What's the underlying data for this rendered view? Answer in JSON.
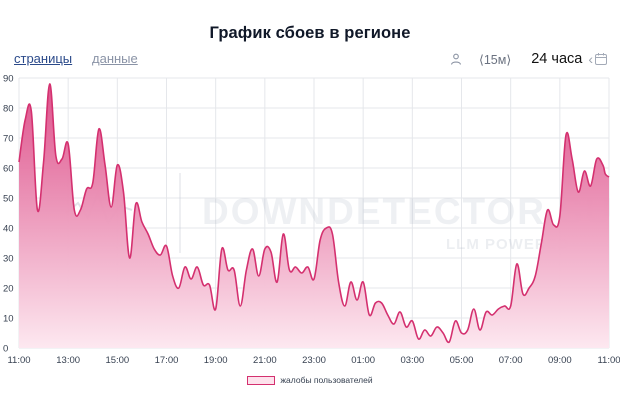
{
  "header": {
    "title": "График сбоев в регионе"
  },
  "nav": {
    "pages_label": "страницы",
    "data_label": "данные"
  },
  "controls": {
    "user_icon": "user-icon",
    "interval_label": "⟨15м⟩",
    "range_label": "24 часа",
    "prev_icon": "chevron-left-icon",
    "calendar_icon": "calendar-icon"
  },
  "watermark": {
    "main": "DOWNDETECTOR SU",
    "sub": "LLM POWERED"
  },
  "colors": {
    "line": "#d4306f",
    "fill_top": "#e05590",
    "fill_bottom": "#fce4ee",
    "grid": "#e5e7eb"
  },
  "chart_data": {
    "type": "area",
    "title": "График сбоев в регионе",
    "xlabel": "",
    "ylabel": "",
    "ylim": [
      0,
      90
    ],
    "yticks": [
      0,
      10,
      20,
      30,
      40,
      50,
      60,
      70,
      80,
      90
    ],
    "xlim": [
      0,
      24
    ],
    "xtick_labels": [
      "11:00",
      "13:00",
      "15:00",
      "17:00",
      "19:00",
      "21:00",
      "23:00",
      "01:00",
      "03:00",
      "05:00",
      "07:00",
      "09:00",
      "11:00"
    ],
    "grid": true,
    "legend_position": "bottom-center",
    "series": [
      {
        "name": "жалобы пользователей",
        "points": [
          [
            0.0,
            62
          ],
          [
            0.25,
            76
          ],
          [
            0.5,
            79
          ],
          [
            0.75,
            46
          ],
          [
            1.0,
            62
          ],
          [
            1.25,
            88
          ],
          [
            1.5,
            64
          ],
          [
            1.75,
            63
          ],
          [
            2.0,
            68
          ],
          [
            2.25,
            46
          ],
          [
            2.5,
            46
          ],
          [
            2.75,
            53
          ],
          [
            3.0,
            55
          ],
          [
            3.25,
            73
          ],
          [
            3.5,
            61
          ],
          [
            3.75,
            47
          ],
          [
            4.0,
            61
          ],
          [
            4.25,
            52
          ],
          [
            4.5,
            30
          ],
          [
            4.75,
            48
          ],
          [
            5.0,
            42
          ],
          [
            5.25,
            38
          ],
          [
            5.5,
            33
          ],
          [
            5.75,
            31
          ],
          [
            6.0,
            34
          ],
          [
            6.25,
            24
          ],
          [
            6.5,
            20
          ],
          [
            6.75,
            27
          ],
          [
            7.0,
            23
          ],
          [
            7.25,
            27
          ],
          [
            7.5,
            21
          ],
          [
            7.75,
            21
          ],
          [
            8.0,
            13
          ],
          [
            8.25,
            33
          ],
          [
            8.5,
            26
          ],
          [
            8.75,
            26
          ],
          [
            9.0,
            14
          ],
          [
            9.25,
            26
          ],
          [
            9.5,
            33
          ],
          [
            9.75,
            24
          ],
          [
            10.0,
            33
          ],
          [
            10.25,
            32
          ],
          [
            10.5,
            22
          ],
          [
            10.75,
            38
          ],
          [
            11.0,
            26
          ],
          [
            11.25,
            27
          ],
          [
            11.5,
            25
          ],
          [
            11.75,
            27
          ],
          [
            12.0,
            23
          ],
          [
            12.25,
            36
          ],
          [
            12.5,
            40
          ],
          [
            12.75,
            38
          ],
          [
            13.0,
            22
          ],
          [
            13.25,
            14
          ],
          [
            13.5,
            22
          ],
          [
            13.75,
            16
          ],
          [
            14.0,
            22
          ],
          [
            14.25,
            11
          ],
          [
            14.5,
            15
          ],
          [
            14.75,
            15
          ],
          [
            15.0,
            11
          ],
          [
            15.25,
            8
          ],
          [
            15.5,
            12
          ],
          [
            15.75,
            7
          ],
          [
            16.0,
            9
          ],
          [
            16.25,
            3
          ],
          [
            16.5,
            6
          ],
          [
            16.75,
            4
          ],
          [
            17.0,
            7
          ],
          [
            17.25,
            5
          ],
          [
            17.5,
            2
          ],
          [
            17.75,
            9
          ],
          [
            18.0,
            5
          ],
          [
            18.25,
            6
          ],
          [
            18.5,
            13
          ],
          [
            18.75,
            6
          ],
          [
            19.0,
            12
          ],
          [
            19.25,
            11
          ],
          [
            19.5,
            13
          ],
          [
            19.75,
            14
          ],
          [
            20.0,
            14
          ],
          [
            20.25,
            28
          ],
          [
            20.5,
            18
          ],
          [
            20.75,
            20
          ],
          [
            21.0,
            24
          ],
          [
            21.25,
            35
          ],
          [
            21.5,
            46
          ],
          [
            21.75,
            41
          ],
          [
            22.0,
            44
          ],
          [
            22.25,
            71
          ],
          [
            22.5,
            63
          ],
          [
            22.75,
            52
          ],
          [
            23.0,
            59
          ],
          [
            23.25,
            54
          ],
          [
            23.5,
            63
          ],
          [
            23.75,
            61
          ],
          [
            23.85,
            58
          ],
          [
            24.0,
            57
          ]
        ]
      }
    ]
  }
}
